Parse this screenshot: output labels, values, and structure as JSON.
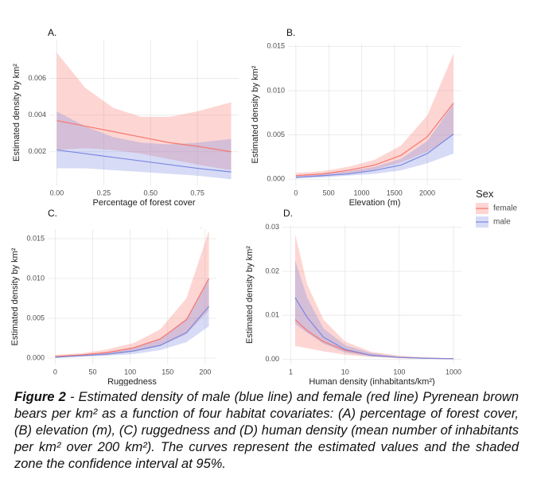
{
  "chart_data": [
    {
      "type": "line",
      "panel": "A.",
      "xlabel": "Percentage of forest cover",
      "ylabel": "Estimated density by km²",
      "x": [
        0,
        0.15,
        0.3,
        0.45,
        0.6,
        0.75,
        0.93
      ],
      "xlim": [
        -0.04,
        0.97
      ],
      "xticks": [
        {
          "value": 0,
          "label": "0.00"
        },
        0.25,
        {
          "value": 0.5,
          "label": "0.50"
        },
        0.75
      ],
      "ylim": [
        0.00017,
        0.0081
      ],
      "yticks": [
        0.002,
        0.004,
        0.006
      ],
      "grid": true,
      "series": [
        {
          "name": "female",
          "color": "#f8766d",
          "values": [
            0.0037,
            0.0034,
            0.0031,
            0.0028,
            0.0025,
            0.0023,
            0.002
          ],
          "upper": [
            0.0074,
            0.0055,
            0.0044,
            0.0039,
            0.0039,
            0.0042,
            0.0047
          ],
          "lower": [
            0.0021,
            0.0022,
            0.0021,
            0.0019,
            0.0016,
            0.0013,
            0.001
          ]
        },
        {
          "name": "male",
          "color": "#7b88e0",
          "values": [
            0.0021,
            0.0019,
            0.0017,
            0.0015,
            0.0013,
            0.0011,
            0.0009
          ],
          "upper": [
            0.0042,
            0.0034,
            0.0028,
            0.0025,
            0.0024,
            0.0025,
            0.0027
          ],
          "lower": [
            0.0011,
            0.0011,
            0.001,
            0.0009,
            0.0008,
            0.0007,
            0.0005
          ]
        }
      ]
    },
    {
      "type": "line",
      "panel": "B.",
      "xlabel": "Elevation (m)",
      "ylabel": "Estimated density by km²",
      "x": [
        0,
        400,
        800,
        1200,
        1600,
        2000,
        2400
      ],
      "xlim": [
        -120,
        2520
      ],
      "xticks": [
        0,
        500,
        1000,
        1500,
        2000
      ],
      "ylim": [
        -0.0007,
        0.0153
      ],
      "yticks": [
        {
          "value": 0,
          "label": "0.000"
        },
        0.005,
        {
          "value": 0.01,
          "label": "0.010"
        },
        0.015
      ],
      "grid": true,
      "series": [
        {
          "name": "female",
          "color": "#f8766d",
          "values": [
            0.0004,
            0.0006,
            0.001,
            0.0016,
            0.0027,
            0.0048,
            0.0086
          ],
          "upper": [
            0.0007,
            0.0009,
            0.0014,
            0.0022,
            0.0038,
            0.0072,
            0.0142
          ],
          "lower": [
            0.0002,
            0.0003,
            0.0006,
            0.0011,
            0.0019,
            0.0031,
            0.005
          ]
        },
        {
          "name": "male",
          "color": "#7b88e0",
          "values": [
            0.0002,
            0.0004,
            0.0006,
            0.001,
            0.0016,
            0.0029,
            0.0051
          ],
          "upper": [
            0.0004,
            0.0006,
            0.0009,
            0.0014,
            0.0023,
            0.0043,
            0.0085
          ],
          "lower": [
            0.0001,
            0.0002,
            0.0004,
            0.0006,
            0.001,
            0.0018,
            0.0029
          ]
        }
      ]
    },
    {
      "type": "line",
      "panel": "C.",
      "xlabel": "Ruggedness",
      "ylabel": "Estimated density by km²",
      "x": [
        0,
        35,
        70,
        105,
        140,
        175,
        205
      ],
      "xlim": [
        -10,
        215
      ],
      "xticks": [
        0,
        50,
        100,
        150,
        200
      ],
      "ylim": [
        -0.0008,
        0.0162
      ],
      "yticks": [
        {
          "value": 0,
          "label": "0.000"
        },
        0.005,
        {
          "value": 0.01,
          "label": "0.010"
        },
        0.015
      ],
      "grid": true,
      "series": [
        {
          "name": "female",
          "color": "#f8766d",
          "values": [
            0.0002,
            0.0004,
            0.0007,
            0.0013,
            0.0024,
            0.0048,
            0.01
          ],
          "upper": [
            0.0004,
            0.0006,
            0.0011,
            0.0019,
            0.0036,
            0.0075,
            0.016
          ],
          "lower": [
            0.0001,
            0.0002,
            0.0004,
            0.0008,
            0.0015,
            0.003,
            0.006
          ]
        },
        {
          "name": "male",
          "color": "#7b88e0",
          "values": [
            0.0001,
            0.0003,
            0.0005,
            0.0009,
            0.0016,
            0.0032,
            0.0065
          ],
          "upper": [
            0.0002,
            0.0004,
            0.0008,
            0.0013,
            0.0024,
            0.005,
            0.01
          ],
          "lower": [
            0.0001,
            0.0002,
            0.0003,
            0.0005,
            0.001,
            0.002,
            0.004
          ]
        }
      ]
    },
    {
      "type": "line",
      "panel": "D.",
      "xlabel": "Human density (inhabitants/km²)",
      "ylabel": "Estimated density by km²",
      "xscale": "log",
      "x": [
        1.2,
        2,
        4,
        10,
        30,
        100,
        300,
        1000
      ],
      "xlim": [
        0.7,
        1400
      ],
      "xticks": [
        1,
        10,
        100,
        1000
      ],
      "ylim": [
        -0.0012,
        0.0305
      ],
      "yticks": [
        {
          "value": 0,
          "label": "0.00"
        },
        0.01,
        0.02,
        0.03
      ],
      "grid": true,
      "series": [
        {
          "name": "female",
          "color": "#f8766d",
          "values": [
            0.009,
            0.0065,
            0.004,
            0.002,
            0.0009,
            0.0004,
            0.0002,
            0.0001
          ],
          "upper": [
            0.0285,
            0.017,
            0.009,
            0.004,
            0.0017,
            0.0008,
            0.0004,
            0.0002
          ],
          "lower": [
            0.003,
            0.0025,
            0.0018,
            0.001,
            0.0005,
            0.0002,
            0.0001,
            0
          ]
        },
        {
          "name": "male",
          "color": "#7b88e0",
          "values": [
            0.014,
            0.0095,
            0.005,
            0.0022,
            0.0009,
            0.0004,
            0.0002,
            0.0001
          ],
          "upper": [
            0.0225,
            0.014,
            0.007,
            0.0032,
            0.0014,
            0.0006,
            0.0003,
            0.0001
          ],
          "lower": [
            0.008,
            0.006,
            0.0035,
            0.0015,
            0.0006,
            0.0003,
            0.0001,
            0
          ]
        }
      ]
    }
  ],
  "legend": {
    "title": "Sex"
  },
  "caption": {
    "label": "Figure 2",
    "text": " - Estimated density of male (blue line) and female (red line) Pyrenean brown bears per km² as a function of four habitat covariates: (A) percentage of forest cover, (B) elevation (m), (C) ruggedness and (D) human density (mean number of inhabitants per km² over 200 km²). The curves represent the estimated values and the shaded zone the confidence interval at 95%."
  }
}
